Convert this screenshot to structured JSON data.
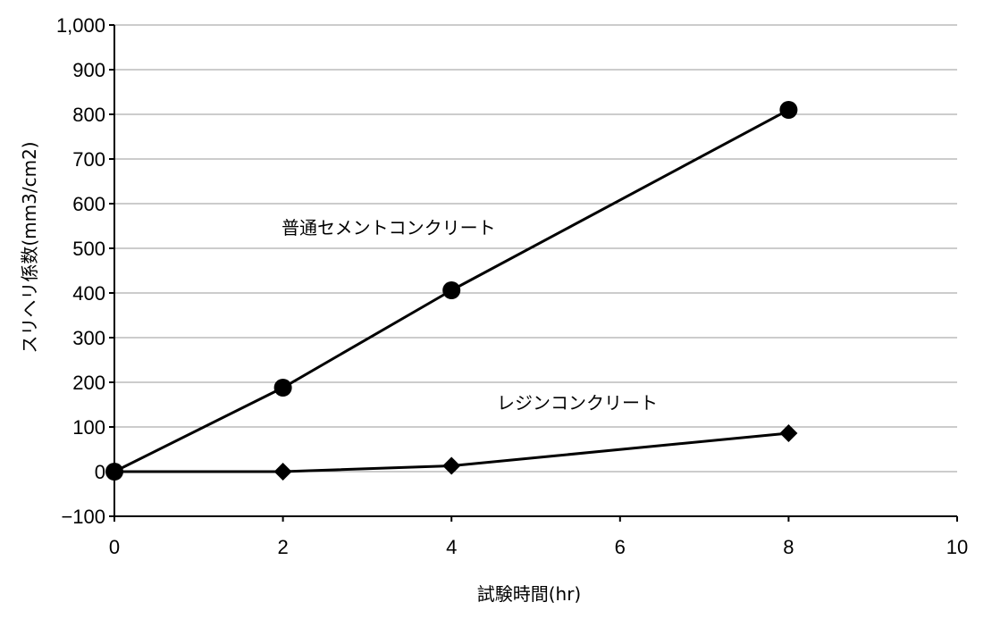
{
  "chart_data": {
    "type": "line",
    "xlabel": "試験時間(hr)",
    "ylabel": "スリヘリ係数(mm3/cm2)",
    "xlim": [
      0,
      10
    ],
    "ylim": [
      -100,
      1000
    ],
    "x_ticks": [
      "0",
      "2",
      "4",
      "6",
      "8",
      "10"
    ],
    "y_ticks": [
      "−100",
      "0",
      "100",
      "200",
      "300",
      "400",
      "500",
      "600",
      "700",
      "800",
      "900",
      "1,000"
    ],
    "grid": true,
    "series": [
      {
        "name": "普通セメントコンクリート",
        "marker": "circle",
        "x": [
          0,
          2,
          4,
          8
        ],
        "y": [
          0,
          188,
          406,
          810
        ]
      },
      {
        "name": "レジンコンクリート",
        "marker": "diamond",
        "x": [
          0,
          2,
          4,
          8
        ],
        "y": [
          0,
          0,
          13,
          86
        ]
      }
    ],
    "colors": {
      "line": "#000000",
      "grid": "#999999"
    }
  }
}
